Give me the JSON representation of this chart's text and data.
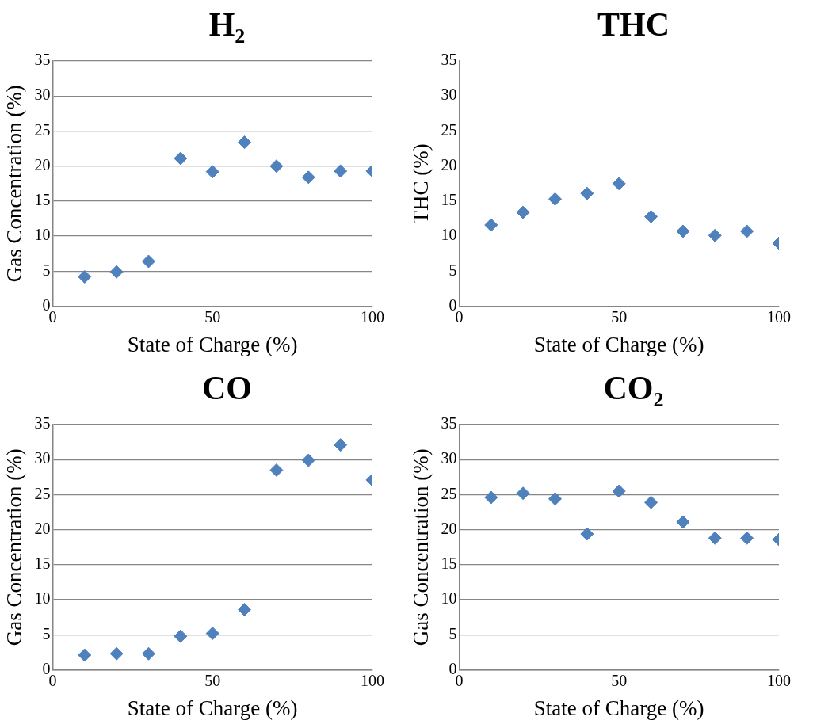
{
  "chart_data": [
    {
      "type": "scatter",
      "title": "H$_{2}$",
      "xlabel": "State of Charge (%)",
      "ylabel": "Gas Concentration (%)",
      "x": [
        10,
        20,
        30,
        40,
        50,
        60,
        70,
        80,
        90,
        100
      ],
      "series": [
        {
          "color": "#4f81bd",
          "values": [
            4.2,
            4.9,
            6.4,
            21.1,
            19.2,
            23.4,
            20.0,
            18.4,
            19.3,
            19.3
          ]
        }
      ],
      "xlim": [
        0,
        100
      ],
      "xticks": [
        0,
        50,
        100
      ],
      "ylim": [
        0,
        35
      ],
      "yticks": [
        0,
        5,
        10,
        15,
        20,
        25,
        30,
        35
      ],
      "grid": "y",
      "marker": "diamond",
      "legend": false
    },
    {
      "type": "scatter",
      "title": "THC",
      "xlabel": "State of Charge (%)",
      "ylabel": "THC (%)",
      "x": [
        10,
        20,
        30,
        40,
        50,
        60,
        70,
        80,
        90,
        100
      ],
      "series": [
        {
          "color": "#4f81bd",
          "values": [
            11.6,
            13.4,
            15.3,
            16.1,
            17.5,
            12.8,
            10.7,
            10.1,
            10.7,
            9.0
          ]
        }
      ],
      "xlim": [
        0,
        100
      ],
      "xticks": [
        0,
        50,
        100
      ],
      "ylim": [
        0,
        35
      ],
      "yticks": [
        0,
        5,
        10,
        15,
        20,
        25,
        30,
        35
      ],
      "grid": false,
      "marker": "diamond",
      "legend": false
    },
    {
      "type": "scatter",
      "title": "CO",
      "xlabel": "State of Charge (%)",
      "ylabel": "Gas Concentration (%)",
      "x": [
        10,
        20,
        30,
        40,
        50,
        60,
        70,
        80,
        90,
        100
      ],
      "series": [
        {
          "color": "#4f81bd",
          "values": [
            2.1,
            2.3,
            2.3,
            4.8,
            5.2,
            8.6,
            28.5,
            29.9,
            32.1,
            27.1
          ]
        }
      ],
      "xlim": [
        0,
        100
      ],
      "xticks": [
        0,
        50,
        100
      ],
      "ylim": [
        0,
        35
      ],
      "yticks": [
        0,
        5,
        10,
        15,
        20,
        25,
        30,
        35
      ],
      "grid": "y",
      "marker": "diamond",
      "legend": false
    },
    {
      "type": "scatter",
      "title": "CO$_{2}$",
      "xlabel": "State of Charge (%)",
      "ylabel": "Gas Concentration (%)",
      "x": [
        10,
        20,
        30,
        40,
        50,
        60,
        70,
        80,
        90,
        100
      ],
      "series": [
        {
          "color": "#4f81bd",
          "values": [
            24.6,
            25.2,
            24.4,
            19.4,
            25.5,
            23.9,
            21.1,
            18.8,
            18.8,
            18.6
          ]
        }
      ],
      "xlim": [
        0,
        100
      ],
      "xticks": [
        0,
        50,
        100
      ],
      "ylim": [
        0,
        35
      ],
      "yticks": [
        0,
        5,
        10,
        15,
        20,
        25,
        30,
        35
      ],
      "grid": "y",
      "marker": "diamond",
      "legend": false
    }
  ]
}
